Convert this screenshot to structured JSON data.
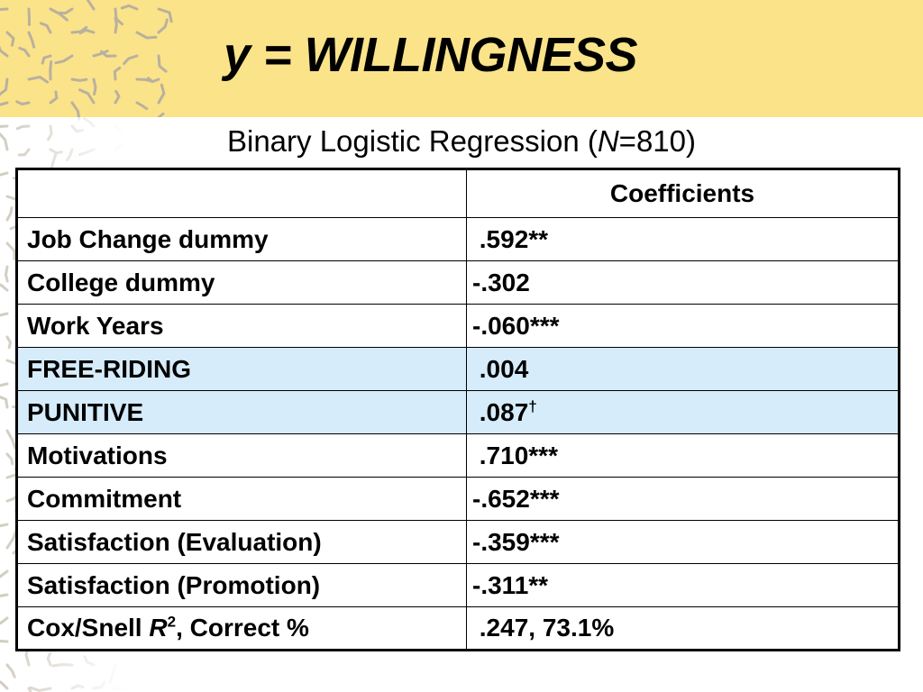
{
  "slide": {
    "title": "y = WILLINGNESS",
    "subtitle_prefix": "Binary Logistic Regression (",
    "subtitle_italic": "N",
    "subtitle_suffix": "=810)"
  },
  "table": {
    "header": {
      "blank": "",
      "coef": "Coefficients"
    },
    "rows": [
      {
        "label": "Job Change dummy",
        "value": " .592**",
        "highlight": false
      },
      {
        "label": "College dummy",
        "value": "-.302",
        "highlight": false
      },
      {
        "label": "Work Years",
        "value": "-.060***",
        "highlight": false
      },
      {
        "label": "FREE-RIDING",
        "value": " .004",
        "highlight": true
      },
      {
        "label": "PUNITIVE",
        "value": " .087",
        "sup": "†",
        "highlight": true
      },
      {
        "label": "Motivations",
        "value": " .710***",
        "highlight": false
      },
      {
        "label": "Commitment",
        "value": "-.652***",
        "highlight": false
      },
      {
        "label": "Satisfaction (Evaluation)",
        "value": "-.359***",
        "highlight": false
      },
      {
        "label": "Satisfaction (Promotion)",
        "value": "-.311**",
        "highlight": false
      }
    ],
    "last_row": {
      "label_prefix": "Cox/Snell ",
      "label_italic": "R",
      "label_sup": "2",
      "label_suffix": ", Correct %",
      "value": " .247, 73.1%"
    }
  },
  "colors": {
    "title_band": "#fbe38a",
    "highlight_row": "#d6ecfb",
    "pattern_stroke": "#b8b0a0"
  },
  "icons": [
    "decorative-pattern"
  ]
}
